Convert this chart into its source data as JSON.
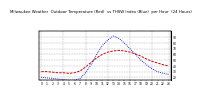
{
  "title": "Milwaukee Weather  Outdoor Temperature (Red)  vs THSW Index (Blue)  per Hour  (24 Hours)",
  "hours": [
    0,
    1,
    2,
    3,
    4,
    5,
    6,
    7,
    8,
    9,
    10,
    11,
    12,
    13,
    14,
    15,
    16,
    17,
    18,
    19,
    20,
    21,
    22,
    23
  ],
  "temp_red": [
    30,
    30,
    29,
    28,
    28,
    27,
    28,
    31,
    38,
    46,
    54,
    60,
    64,
    66,
    67,
    66,
    64,
    61,
    57,
    52,
    48,
    45,
    42,
    40
  ],
  "thsw_blue": [
    20,
    19,
    18,
    17,
    16,
    15,
    15,
    18,
    28,
    42,
    60,
    75,
    85,
    92,
    88,
    80,
    70,
    60,
    50,
    42,
    35,
    30,
    27,
    25
  ],
  "bg_color": "#ffffff",
  "red_color": "#cc0000",
  "blue_color": "#0000cc",
  "grid_color": "#888888",
  "ylim_left": [
    15,
    100
  ],
  "ylim_right": [
    15,
    100
  ],
  "yticks_right": [
    20,
    30,
    40,
    50,
    60,
    70,
    80,
    90
  ],
  "xtick_hours": [
    0,
    1,
    2,
    3,
    4,
    5,
    6,
    7,
    8,
    9,
    10,
    11,
    12,
    13,
    14,
    15,
    16,
    17,
    18,
    19,
    20,
    21,
    22,
    23
  ],
  "vgrid_hours": [
    0,
    4,
    8,
    12,
    16,
    20,
    23
  ],
  "title_fontsize": 2.8,
  "tick_fontsize": 2.2,
  "linewidth": 0.7
}
